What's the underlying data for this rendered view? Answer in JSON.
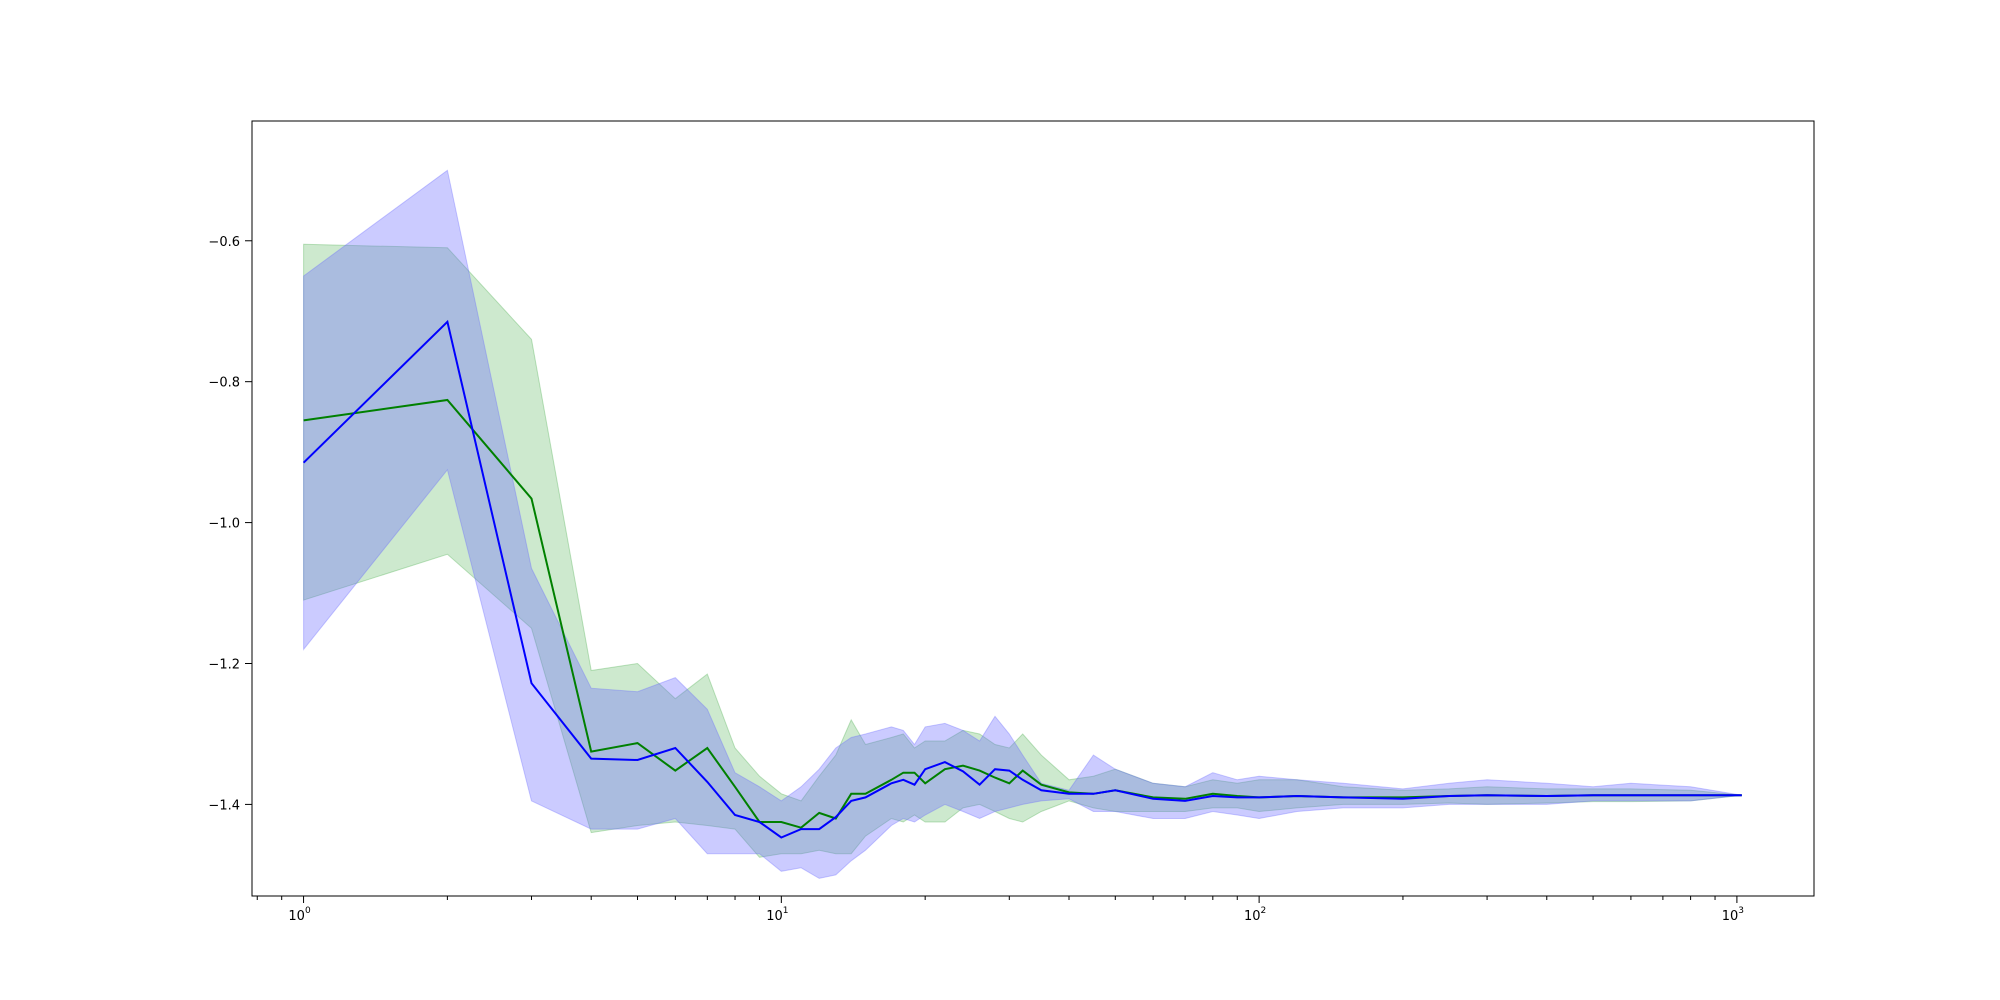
{
  "chart_data": {
    "type": "line",
    "xscale": "log",
    "xlim": [
      0.78,
      1450
    ],
    "ylim": [
      -1.53,
      -0.43
    ],
    "x_major_ticks": [
      1,
      10,
      100,
      1000
    ],
    "x_tick_labels": [
      {
        "base": "10",
        "exp": "0"
      },
      {
        "base": "10",
        "exp": "1"
      },
      {
        "base": "10",
        "exp": "2"
      },
      {
        "base": "10",
        "exp": "3"
      }
    ],
    "y_ticks": [
      -0.6,
      -0.8,
      -1.0,
      -1.2,
      -1.4
    ],
    "y_tick_labels": [
      "−0.6",
      "−0.8",
      "−1.0",
      "−1.2",
      "−1.4"
    ],
    "grid": false,
    "series": [
      {
        "color": "#008000",
        "band_color": "#4caf50",
        "x": [
          1,
          2,
          3,
          4,
          5,
          6,
          7,
          8,
          9,
          10,
          11,
          12,
          13,
          14,
          15,
          17,
          18,
          19,
          20,
          22,
          24,
          26,
          28,
          30,
          32,
          35,
          40,
          45,
          50,
          60,
          70,
          80,
          90,
          100,
          120,
          150,
          200,
          250,
          300,
          400,
          500,
          600,
          800,
          1024
        ],
        "y": [
          -0.855,
          -0.826,
          -0.966,
          -1.325,
          -1.313,
          -1.352,
          -1.32,
          -1.375,
          -1.425,
          -1.425,
          -1.433,
          -1.412,
          -1.42,
          -1.385,
          -1.385,
          -1.365,
          -1.355,
          -1.355,
          -1.37,
          -1.35,
          -1.345,
          -1.352,
          -1.362,
          -1.37,
          -1.352,
          -1.372,
          -1.383,
          -1.385,
          -1.38,
          -1.39,
          -1.392,
          -1.385,
          -1.388,
          -1.39,
          -1.388,
          -1.39,
          -1.39,
          -1.388,
          -1.387,
          -1.388,
          -1.387,
          -1.387,
          -1.387,
          -1.387
        ],
        "upper": [
          -0.605,
          -0.61,
          -0.74,
          -1.21,
          -1.2,
          -1.25,
          -1.215,
          -1.32,
          -1.36,
          -1.385,
          -1.395,
          -1.36,
          -1.33,
          -1.28,
          -1.315,
          -1.305,
          -1.3,
          -1.32,
          -1.31,
          -1.31,
          -1.295,
          -1.3,
          -1.315,
          -1.32,
          -1.3,
          -1.33,
          -1.365,
          -1.36,
          -1.35,
          -1.37,
          -1.375,
          -1.365,
          -1.37,
          -1.365,
          -1.365,
          -1.375,
          -1.38,
          -1.378,
          -1.375,
          -1.378,
          -1.378,
          -1.378,
          -1.38,
          -1.387
        ],
        "lower": [
          -1.11,
          -1.045,
          -1.15,
          -1.44,
          -1.43,
          -1.425,
          -1.43,
          -1.435,
          -1.475,
          -1.47,
          -1.47,
          -1.465,
          -1.47,
          -1.47,
          -1.445,
          -1.42,
          -1.425,
          -1.415,
          -1.425,
          -1.425,
          -1.405,
          -1.4,
          -1.41,
          -1.42,
          -1.425,
          -1.41,
          -1.395,
          -1.405,
          -1.41,
          -1.41,
          -1.41,
          -1.405,
          -1.405,
          -1.41,
          -1.405,
          -1.4,
          -1.4,
          -1.398,
          -1.4,
          -1.398,
          -1.396,
          -1.396,
          -1.395,
          -1.387
        ]
      },
      {
        "color": "#0000ff",
        "band_color": "#6b6bff",
        "x": [
          1,
          2,
          3,
          4,
          5,
          6,
          7,
          8,
          9,
          10,
          11,
          12,
          13,
          14,
          15,
          17,
          18,
          19,
          20,
          22,
          24,
          26,
          28,
          30,
          32,
          35,
          40,
          45,
          50,
          60,
          70,
          80,
          90,
          100,
          120,
          150,
          200,
          250,
          300,
          400,
          500,
          600,
          800,
          1024
        ],
        "y": [
          -0.915,
          -0.715,
          -1.228,
          -1.335,
          -1.337,
          -1.32,
          -1.368,
          -1.415,
          -1.425,
          -1.447,
          -1.435,
          -1.435,
          -1.418,
          -1.395,
          -1.39,
          -1.37,
          -1.365,
          -1.372,
          -1.35,
          -1.34,
          -1.353,
          -1.372,
          -1.35,
          -1.352,
          -1.365,
          -1.38,
          -1.385,
          -1.385,
          -1.38,
          -1.392,
          -1.395,
          -1.388,
          -1.39,
          -1.39,
          -1.388,
          -1.39,
          -1.392,
          -1.388,
          -1.387,
          -1.388,
          -1.387,
          -1.387,
          -1.387,
          -1.387
        ],
        "upper": [
          -0.65,
          -0.5,
          -1.065,
          -1.235,
          -1.24,
          -1.22,
          -1.265,
          -1.355,
          -1.375,
          -1.395,
          -1.375,
          -1.35,
          -1.32,
          -1.305,
          -1.3,
          -1.29,
          -1.295,
          -1.315,
          -1.29,
          -1.285,
          -1.295,
          -1.31,
          -1.275,
          -1.3,
          -1.33,
          -1.37,
          -1.38,
          -1.33,
          -1.35,
          -1.37,
          -1.375,
          -1.355,
          -1.365,
          -1.36,
          -1.365,
          -1.37,
          -1.378,
          -1.37,
          -1.365,
          -1.37,
          -1.375,
          -1.37,
          -1.375,
          -1.387
        ],
        "lower": [
          -1.18,
          -0.925,
          -1.395,
          -1.435,
          -1.435,
          -1.42,
          -1.47,
          -1.47,
          -1.47,
          -1.495,
          -1.49,
          -1.505,
          -1.5,
          -1.48,
          -1.465,
          -1.43,
          -1.42,
          -1.425,
          -1.415,
          -1.4,
          -1.41,
          -1.42,
          -1.41,
          -1.405,
          -1.4,
          -1.395,
          -1.392,
          -1.41,
          -1.41,
          -1.42,
          -1.42,
          -1.41,
          -1.415,
          -1.42,
          -1.41,
          -1.405,
          -1.405,
          -1.4,
          -1.4,
          -1.4,
          -1.395,
          -1.395,
          -1.395,
          -1.387
        ]
      }
    ]
  }
}
